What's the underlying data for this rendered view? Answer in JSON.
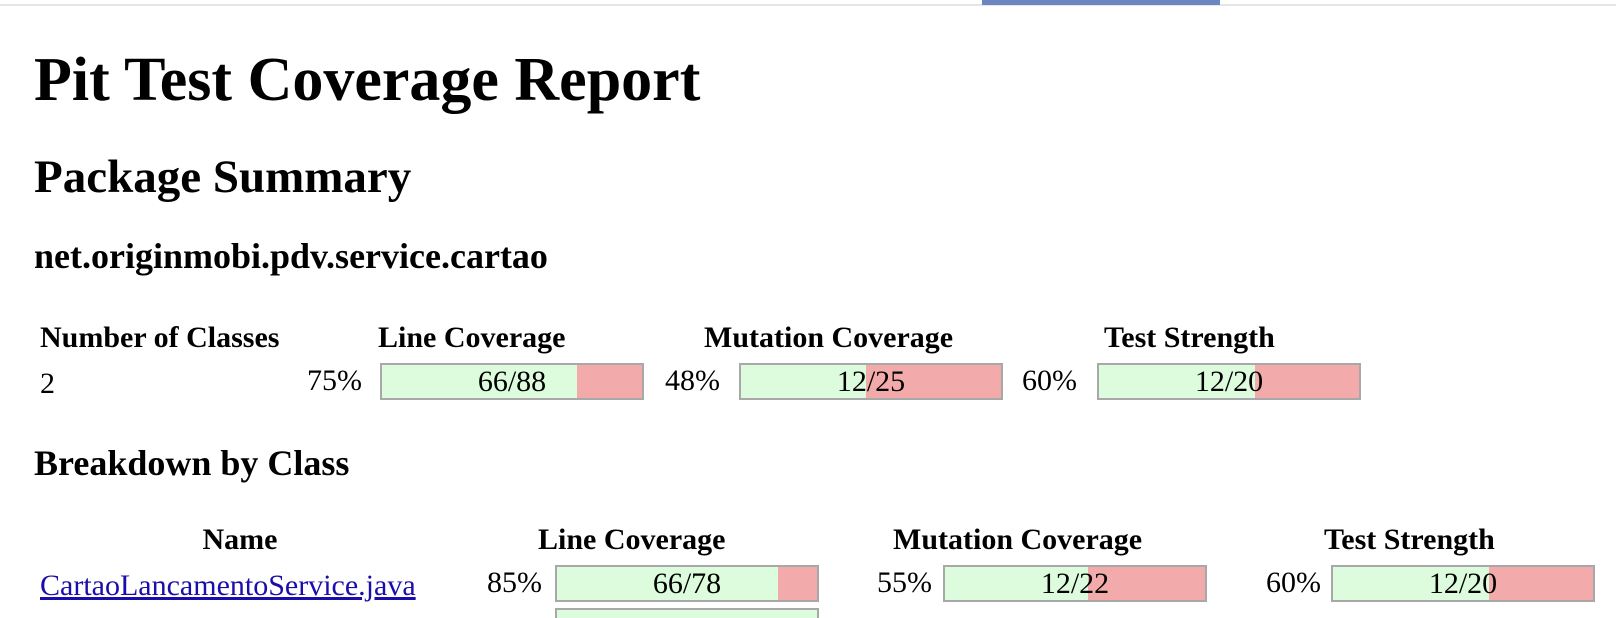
{
  "report": {
    "title": "Pit Test Coverage Report",
    "package_summary_heading": "Package Summary",
    "package_name": "net.originmobi.pdv.service.cartao",
    "breakdown_heading": "Breakdown by Class"
  },
  "package_summary": {
    "headers": {
      "classes": "Number of Classes",
      "line": "Line Coverage",
      "mutation": "Mutation Coverage",
      "strength": "Test Strength"
    },
    "classes": "2",
    "line": {
      "percent": "75%",
      "fraction": "66/88",
      "ratio": 0.75
    },
    "mutation": {
      "percent": "48%",
      "fraction": "12/25",
      "ratio": 0.48
    },
    "strength": {
      "percent": "60%",
      "fraction": "12/20",
      "ratio": 0.6
    }
  },
  "breakdown": {
    "headers": {
      "name": "Name",
      "line": "Line Coverage",
      "mutation": "Mutation Coverage",
      "strength": "Test Strength"
    },
    "rows": [
      {
        "name": "CartaoLancamentoService.java",
        "line": {
          "percent": "85%",
          "fraction": "66/78",
          "ratio": 0.85
        },
        "mutation": {
          "percent": "55%",
          "fraction": "12/22",
          "ratio": 0.55
        },
        "strength": {
          "percent": "60%",
          "fraction": "12/20",
          "ratio": 0.6
        }
      }
    ]
  },
  "colors": {
    "covered": "#ddfcdd",
    "uncovered": "#f2aaaa",
    "bar_border": "#a8a8a8",
    "link": "#1a0dab",
    "tab_accent": "#6b86c0"
  }
}
